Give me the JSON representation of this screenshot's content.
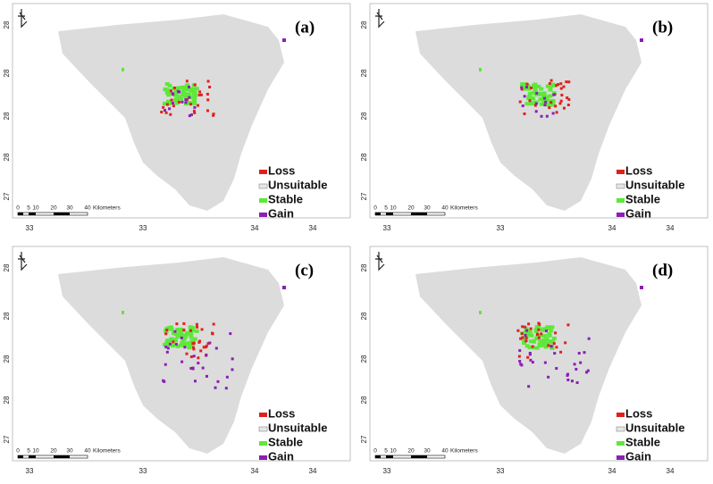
{
  "panels": [
    {
      "label": "(a)"
    },
    {
      "label": "(b)"
    },
    {
      "label": "(c)"
    },
    {
      "label": "(d)"
    }
  ],
  "legend": [
    "Loss",
    "Unsuitable",
    "Stable",
    "Gain"
  ],
  "x_ticks": [
    "33",
    "33",
    "34",
    "34"
  ],
  "y_ticks": [
    "28",
    "28",
    "28",
    "28",
    "27"
  ],
  "scale_labels": [
    "0",
    "5",
    "10",
    "20",
    "30",
    "40",
    "Kilometers"
  ]
}
